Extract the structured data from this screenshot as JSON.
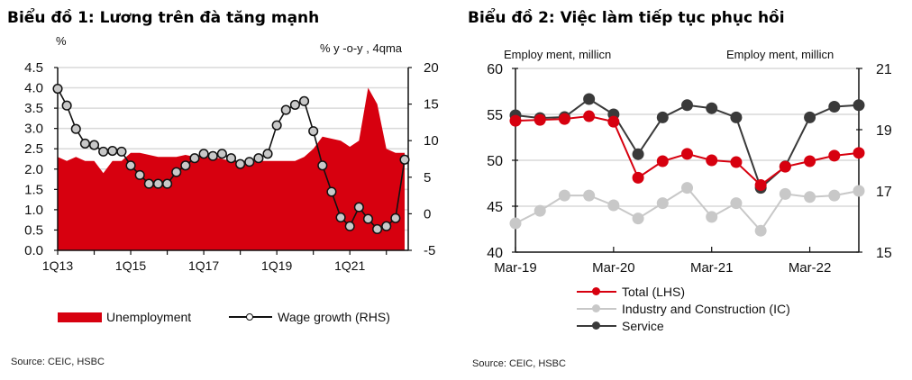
{
  "chart_data": [
    {
      "type": "area+line",
      "title": "Biểu đồ 1: Lương trên đà tăng mạnh",
      "left_axis_label": "%",
      "right_axis_label": "% y -o-y , 4qma",
      "ylim_left": [
        0,
        4.5
      ],
      "yticks_left": [
        "4.5",
        "4.0",
        "3.5",
        "3.0",
        "2.5",
        "2.0",
        "1.5",
        "1.0",
        "0.5",
        "0.0"
      ],
      "ylim_right": [
        -5,
        20
      ],
      "yticks_right": [
        "20",
        "15",
        "10",
        "5",
        "0",
        "-5"
      ],
      "xtick_labels": [
        "1Q13",
        "1Q15",
        "1Q17",
        "1Q19",
        "1Q21"
      ],
      "grid": true,
      "legend_position": "bottom",
      "series": [
        {
          "name": "Unemployment",
          "kind": "area",
          "axis": "left",
          "color": "#d7000f",
          "values": [
            2.3,
            2.2,
            2.3,
            2.2,
            2.2,
            1.9,
            2.2,
            2.2,
            2.4,
            2.4,
            2.35,
            2.3,
            2.3,
            2.3,
            2.35,
            2.3,
            2.3,
            2.3,
            2.25,
            2.2,
            2.2,
            2.2,
            2.2,
            2.2,
            2.2,
            2.2,
            2.2,
            2.3,
            2.5,
            2.8,
            2.75,
            2.7,
            2.55,
            2.7,
            4.0,
            3.6,
            2.5,
            2.4,
            2.4
          ]
        },
        {
          "name": "Wage growth (RHS)",
          "kind": "line-marker",
          "axis": "right",
          "color": "#111111",
          "marker_color": "#c8c8c8",
          "values": [
            17.1,
            14.8,
            11.6,
            9.6,
            9.4,
            8.5,
            8.6,
            8.5,
            6.6,
            5.3,
            4.1,
            4.1,
            4.1,
            5.7,
            6.6,
            7.6,
            8.2,
            7.9,
            8.2,
            7.6,
            6.8,
            7.1,
            7.6,
            8.2,
            12.1,
            14.2,
            14.9,
            15.4,
            11.3,
            6.6,
            3.0,
            -0.5,
            -1.7,
            0.9,
            -0.7,
            -2.1,
            -1.7,
            -0.6,
            7.4
          ]
        }
      ],
      "source": "Source: CEIC, HSBC"
    },
    {
      "type": "line",
      "title": "Biểu đồ 2: Việc làm tiếp tục phục hồi",
      "left_axis_label": "Employ ment, millicn",
      "right_axis_label": "Employ ment, millicn",
      "ylim_left": [
        40,
        60
      ],
      "yticks_left": [
        "60",
        "55",
        "50",
        "45",
        "40"
      ],
      "ylim_right": [
        15,
        21
      ],
      "yticks_right": [
        "21",
        "19",
        "17",
        "15"
      ],
      "xtick_labels": [
        "Mar-19",
        "Mar-20",
        "Mar-21",
        "Mar-22"
      ],
      "grid": true,
      "legend_position": "bottom",
      "series": [
        {
          "name": "Industry and Construction (IC)",
          "axis": "right",
          "color": "#c8c8c8",
          "values": [
            15.94,
            16.35,
            16.85,
            16.85,
            16.53,
            16.1,
            16.6,
            17.1,
            16.15,
            16.6,
            15.7,
            16.9,
            16.8,
            16.85,
            17.0
          ]
        },
        {
          "name": "Service",
          "axis": "right",
          "color": "#3a3a3a",
          "values": [
            19.47,
            19.38,
            19.41,
            20.0,
            19.5,
            18.2,
            19.4,
            19.8,
            19.7,
            19.4,
            17.1,
            17.8,
            19.4,
            19.75,
            19.8
          ]
        },
        {
          "name": "Total (LHS)",
          "axis": "left",
          "color": "#d7000f",
          "values": [
            54.3,
            54.4,
            54.5,
            54.8,
            54.2,
            48.1,
            49.9,
            50.7,
            50.0,
            49.8,
            47.3,
            49.3,
            49.9,
            50.5,
            50.8
          ]
        }
      ],
      "legend_order": [
        "Total (LHS)",
        "Industry and Construction (IC)",
        "Service"
      ],
      "source": "Source: CEIC, HSBC"
    }
  ]
}
